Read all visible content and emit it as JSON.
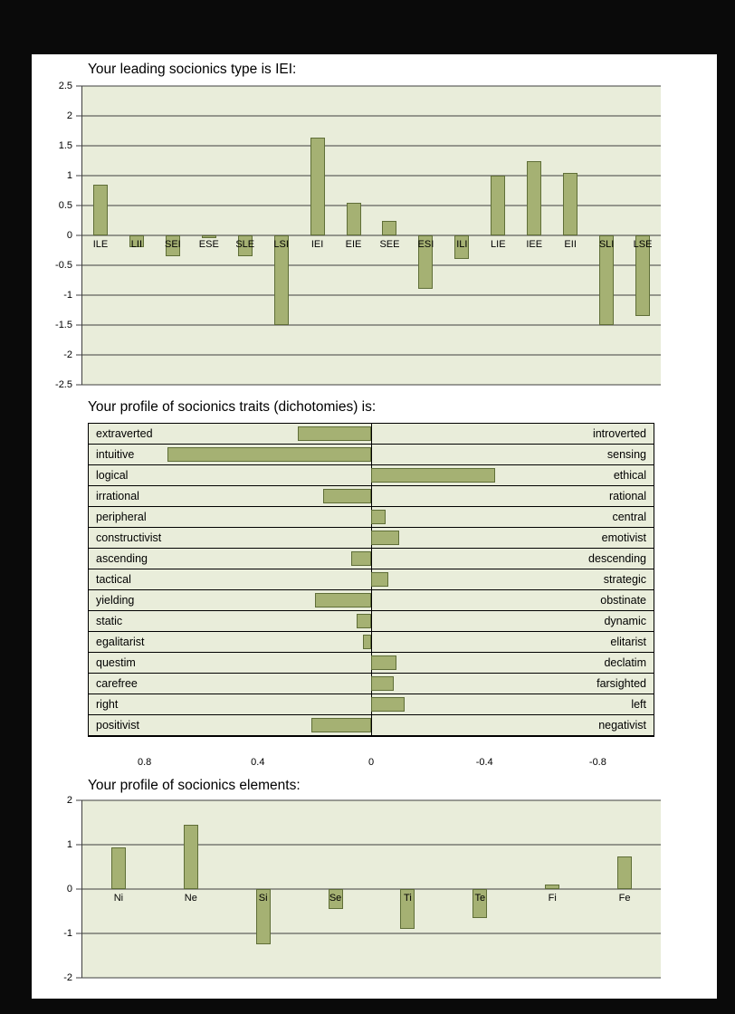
{
  "colors": {
    "page_bg": "#0a0a0a",
    "content_bg": "#ffffff",
    "plot_bg": "#e9edda",
    "bar_fill": "#a5b173",
    "bar_border": "#5f6e37",
    "grid_line": "#3f3f3f",
    "text": "#000000"
  },
  "chart_data": [
    {
      "type": "bar",
      "title": "Your leading socionics type is IEI:",
      "categories": [
        "ILE",
        "LII",
        "SEI",
        "ESE",
        "SLE",
        "LSI",
        "IEI",
        "EIE",
        "SEE",
        "ESI",
        "ILI",
        "LIE",
        "IEE",
        "EII",
        "SLI",
        "LSE"
      ],
      "values": [
        0.85,
        -0.2,
        -0.35,
        -0.05,
        -0.35,
        -1.5,
        1.63,
        0.55,
        0.25,
        -0.9,
        -0.4,
        1.0,
        1.25,
        1.05,
        -1.5,
        -1.35
      ],
      "ylim": [
        -2.5,
        2.5
      ],
      "yticks": [
        2.5,
        2,
        1.5,
        1,
        0.5,
        0,
        -0.5,
        -1,
        -1.5,
        -2,
        -2.5
      ],
      "grid": true,
      "legend": false,
      "xlabel": "",
      "ylabel": ""
    },
    {
      "type": "bar",
      "orientation": "horizontal",
      "title": "Your profile of socionics traits (dichotomies) is:",
      "rows": [
        {
          "left": "extraverted",
          "right": "introverted",
          "value": 0.26
        },
        {
          "left": "intuitive",
          "right": "sensing",
          "value": 0.72
        },
        {
          "left": "logical",
          "right": "ethical",
          "value": -0.44
        },
        {
          "left": "irrational",
          "right": "rational",
          "value": 0.17
        },
        {
          "left": "peripheral",
          "right": "central",
          "value": -0.05
        },
        {
          "left": "constructivist",
          "right": "emotivist",
          "value": -0.1
        },
        {
          "left": "ascending",
          "right": "descending",
          "value": 0.07
        },
        {
          "left": "tactical",
          "right": "strategic",
          "value": -0.06
        },
        {
          "left": "yielding",
          "right": "obstinate",
          "value": 0.2
        },
        {
          "left": "static",
          "right": "dynamic",
          "value": 0.05
        },
        {
          "left": "egalitarist",
          "right": "elitarist",
          "value": 0.03
        },
        {
          "left": "questim",
          "right": "declatim",
          "value": -0.09
        },
        {
          "left": "carefree",
          "right": "farsighted",
          "value": -0.08
        },
        {
          "left": "right",
          "right": "left",
          "value": -0.12
        },
        {
          "left": "positivist",
          "right": "negativist",
          "value": 0.21
        }
      ],
      "xlim": [
        1,
        -1
      ],
      "xticks": [
        0.8,
        0.4,
        0,
        -0.4,
        -0.8
      ],
      "legend": false
    },
    {
      "type": "bar",
      "title": "Your profile of socionics elements:",
      "categories": [
        "Ni",
        "Ne",
        "Si",
        "Se",
        "Ti",
        "Te",
        "Fi",
        "Fe"
      ],
      "values": [
        0.93,
        1.45,
        -1.25,
        -0.45,
        -0.9,
        -0.65,
        0.1,
        0.73
      ],
      "ylim": [
        -2,
        2
      ],
      "yticks": [
        2,
        1,
        0,
        -1,
        -2
      ],
      "grid": true,
      "legend": false,
      "xlabel": "",
      "ylabel": ""
    }
  ]
}
